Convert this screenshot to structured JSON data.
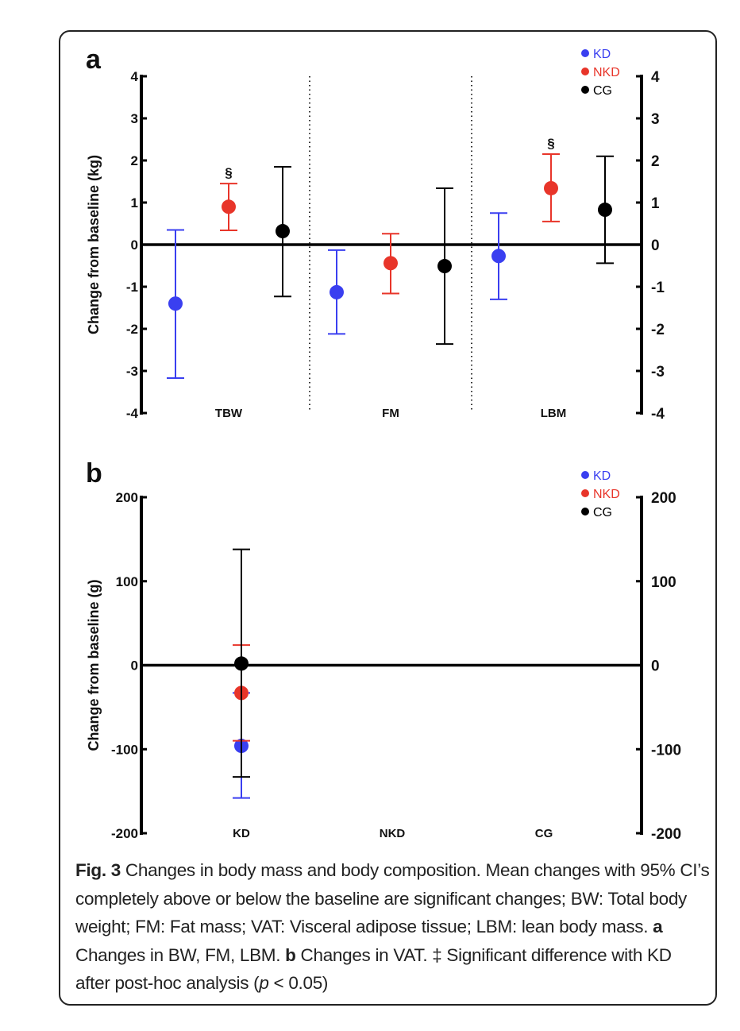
{
  "chart_data": [
    {
      "panel_label": "a",
      "type": "scatter",
      "subtype": "mean-with-95ci",
      "ylabel": "Change from baseline (kg)",
      "ylim": [
        -4,
        4
      ],
      "yticks": [
        "-4",
        "-3",
        "-2",
        "-1",
        "0",
        "1",
        "2",
        "3",
        "4"
      ],
      "categories": [
        "TBW",
        "FM",
        "LBM"
      ],
      "grid": false,
      "legend_position": "top-right",
      "series": [
        {
          "name": "KD",
          "color": "#3a3ff0",
          "mean": [
            -1.4,
            -1.13,
            -0.27
          ],
          "ci_low": [
            -3.17,
            -2.12,
            -1.3
          ],
          "ci_high": [
            0.35,
            -0.13,
            0.75
          ]
        },
        {
          "name": "NKD",
          "color": "#e8352a",
          "mean": [
            0.9,
            -0.44,
            1.34
          ],
          "ci_low": [
            0.34,
            -1.16,
            0.55
          ],
          "ci_high": [
            1.45,
            0.26,
            2.15
          ],
          "annotations": [
            "§",
            "",
            "§"
          ]
        },
        {
          "name": "CG",
          "color": "#000000",
          "mean": [
            0.32,
            -0.51,
            0.83
          ],
          "ci_low": [
            -1.23,
            -2.36,
            -0.44
          ],
          "ci_high": [
            1.85,
            1.34,
            2.1
          ]
        }
      ]
    },
    {
      "panel_label": "b",
      "type": "scatter",
      "subtype": "mean-with-95ci",
      "ylabel": "Change from baseline (g)",
      "ylim": [
        -200,
        200
      ],
      "yticks": [
        "-200",
        "-100",
        "0",
        "100",
        "200"
      ],
      "categories": [
        "KD",
        "NKD",
        "CG"
      ],
      "grid": false,
      "legend_position": "top-right",
      "series": [
        {
          "name": "KD",
          "color": "#3a3ff0",
          "mean": [
            -96
          ],
          "ci_low": [
            -158
          ],
          "ci_high": [
            -33
          ]
        },
        {
          "name": "NKD",
          "color": "#e8352a",
          "mean": [
            -33
          ],
          "ci_low": [
            -90
          ],
          "ci_high": [
            24
          ]
        },
        {
          "name": "CG",
          "color": "#000000",
          "mean": [
            2
          ],
          "ci_low": [
            -133
          ],
          "ci_high": [
            138
          ]
        }
      ]
    }
  ],
  "caption": {
    "fig_label": "Fig. 3",
    "text1": " Changes in body mass and body composition. Mean changes with 95% CI’s completely above or below the baseline are significant changes; BW: Total body weight; FM: Fat mass; VAT: Visceral adipose tissue; LBM: lean body mass. ",
    "a_label": "a",
    "text2": " Changes in BW, FM, LBM. ",
    "b_label": "b",
    "text3": " Changes in VAT. ‡ Significant difference with KD after post-hoc analysis (",
    "p": "p",
    "text4": " < 0.05)"
  }
}
